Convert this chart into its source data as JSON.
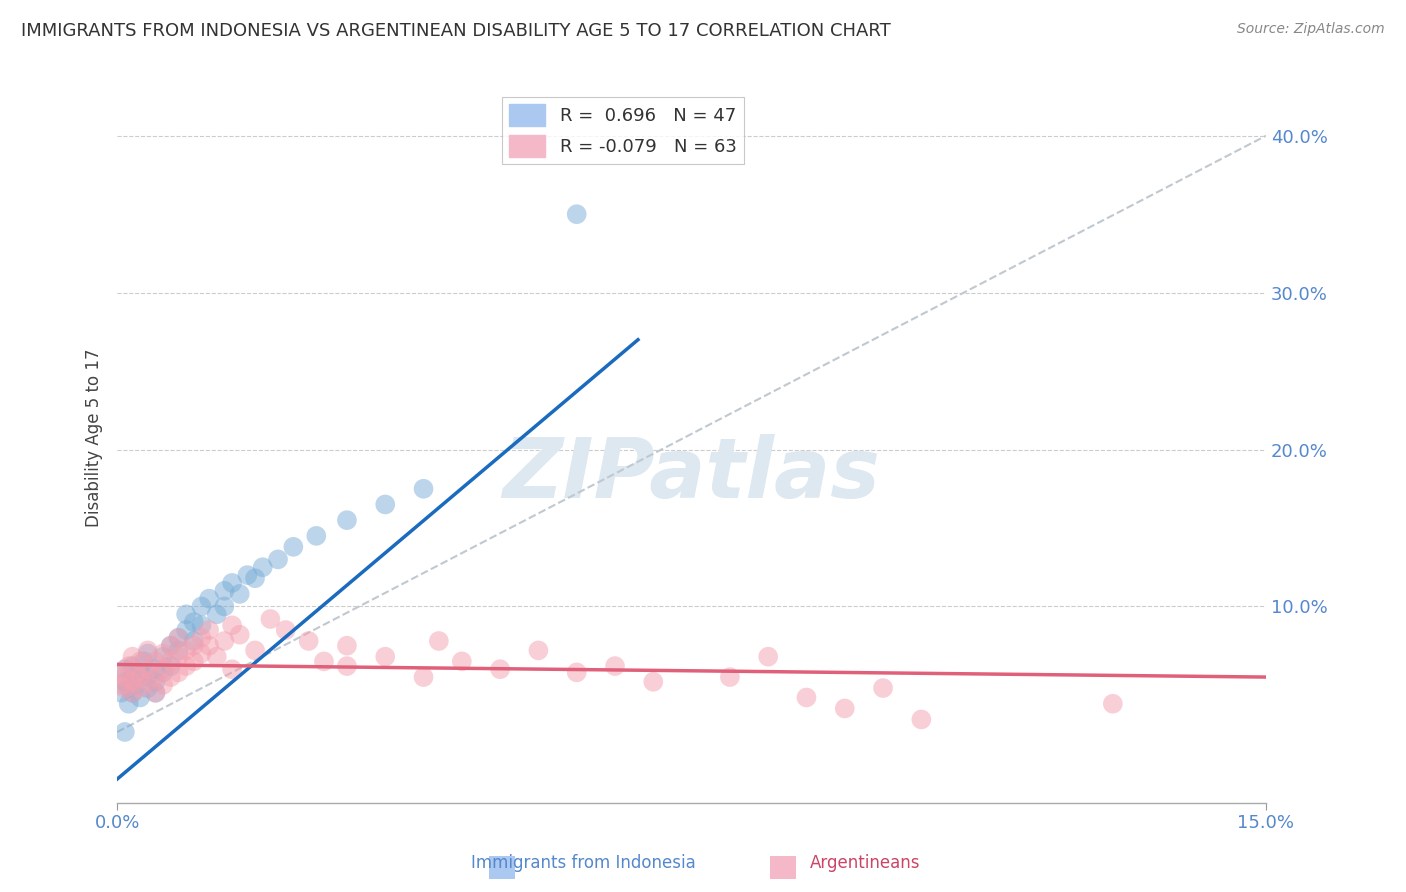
{
  "title": "IMMIGRANTS FROM INDONESIA VS ARGENTINEAN DISABILITY AGE 5 TO 17 CORRELATION CHART",
  "source": "Source: ZipAtlas.com",
  "ylabel": "Disability Age 5 to 17",
  "ytick_values": [
    0.1,
    0.2,
    0.3,
    0.4
  ],
  "ytick_labels": [
    "10.0%",
    "20.0%",
    "30.0%",
    "40.0%"
  ],
  "xlim": [
    0.0,
    0.15
  ],
  "ylim": [
    -0.025,
    0.44
  ],
  "indonesia_color": "#7aacd6",
  "argentina_color": "#f4a0b0",
  "indonesia_line_color": "#1a6bbf",
  "argentina_line_color": "#e0607a",
  "dash_line_color": "#c0c8d0",
  "watermark_color": "#dde8f0",
  "indonesia_R": 0.696,
  "indonesia_N": 47,
  "argentina_R": -0.079,
  "argentina_N": 63,
  "indo_line_x0": 0.0,
  "indo_line_y0": -0.01,
  "indo_line_x1": 0.068,
  "indo_line_y1": 0.27,
  "arg_line_x0": 0.0,
  "arg_line_y0": 0.063,
  "arg_line_x1": 0.15,
  "arg_line_y1": 0.055,
  "dash_line_x0": 0.0,
  "dash_line_y0": 0.02,
  "dash_line_x1": 0.15,
  "dash_line_y1": 0.4,
  "indonesia_points": [
    [
      0.0005,
      0.045
    ],
    [
      0.001,
      0.052
    ],
    [
      0.001,
      0.06
    ],
    [
      0.0015,
      0.048
    ],
    [
      0.0015,
      0.038
    ],
    [
      0.002,
      0.055
    ],
    [
      0.002,
      0.045
    ],
    [
      0.002,
      0.062
    ],
    [
      0.0025,
      0.05
    ],
    [
      0.003,
      0.058
    ],
    [
      0.003,
      0.042
    ],
    [
      0.0035,
      0.065
    ],
    [
      0.004,
      0.055
    ],
    [
      0.004,
      0.048
    ],
    [
      0.004,
      0.07
    ],
    [
      0.005,
      0.06
    ],
    [
      0.005,
      0.052
    ],
    [
      0.005,
      0.045
    ],
    [
      0.006,
      0.068
    ],
    [
      0.006,
      0.058
    ],
    [
      0.007,
      0.075
    ],
    [
      0.007,
      0.062
    ],
    [
      0.008,
      0.08
    ],
    [
      0.008,
      0.072
    ],
    [
      0.009,
      0.085
    ],
    [
      0.009,
      0.095
    ],
    [
      0.01,
      0.09
    ],
    [
      0.01,
      0.078
    ],
    [
      0.011,
      0.1
    ],
    [
      0.011,
      0.088
    ],
    [
      0.012,
      0.105
    ],
    [
      0.013,
      0.095
    ],
    [
      0.014,
      0.11
    ],
    [
      0.014,
      0.1
    ],
    [
      0.015,
      0.115
    ],
    [
      0.016,
      0.108
    ],
    [
      0.017,
      0.12
    ],
    [
      0.018,
      0.118
    ],
    [
      0.019,
      0.125
    ],
    [
      0.021,
      0.13
    ],
    [
      0.023,
      0.138
    ],
    [
      0.026,
      0.145
    ],
    [
      0.03,
      0.155
    ],
    [
      0.035,
      0.165
    ],
    [
      0.04,
      0.175
    ],
    [
      0.06,
      0.35
    ],
    [
      0.001,
      0.02
    ]
  ],
  "argentina_points": [
    [
      0.0003,
      0.058
    ],
    [
      0.0005,
      0.05
    ],
    [
      0.001,
      0.055
    ],
    [
      0.001,
      0.048
    ],
    [
      0.0015,
      0.062
    ],
    [
      0.002,
      0.052
    ],
    [
      0.002,
      0.045
    ],
    [
      0.002,
      0.068
    ],
    [
      0.0025,
      0.058
    ],
    [
      0.003,
      0.055
    ],
    [
      0.003,
      0.048
    ],
    [
      0.003,
      0.065
    ],
    [
      0.004,
      0.06
    ],
    [
      0.004,
      0.052
    ],
    [
      0.004,
      0.072
    ],
    [
      0.005,
      0.065
    ],
    [
      0.005,
      0.055
    ],
    [
      0.005,
      0.045
    ],
    [
      0.006,
      0.07
    ],
    [
      0.006,
      0.06
    ],
    [
      0.006,
      0.05
    ],
    [
      0.007,
      0.075
    ],
    [
      0.007,
      0.065
    ],
    [
      0.007,
      0.055
    ],
    [
      0.008,
      0.08
    ],
    [
      0.008,
      0.068
    ],
    [
      0.008,
      0.058
    ],
    [
      0.009,
      0.072
    ],
    [
      0.009,
      0.062
    ],
    [
      0.01,
      0.075
    ],
    [
      0.01,
      0.065
    ],
    [
      0.011,
      0.08
    ],
    [
      0.011,
      0.07
    ],
    [
      0.012,
      0.085
    ],
    [
      0.012,
      0.075
    ],
    [
      0.013,
      0.068
    ],
    [
      0.014,
      0.078
    ],
    [
      0.015,
      0.088
    ],
    [
      0.015,
      0.06
    ],
    [
      0.016,
      0.082
    ],
    [
      0.018,
      0.072
    ],
    [
      0.02,
      0.092
    ],
    [
      0.022,
      0.085
    ],
    [
      0.025,
      0.078
    ],
    [
      0.027,
      0.065
    ],
    [
      0.03,
      0.075
    ],
    [
      0.03,
      0.062
    ],
    [
      0.035,
      0.068
    ],
    [
      0.04,
      0.055
    ],
    [
      0.042,
      0.078
    ],
    [
      0.045,
      0.065
    ],
    [
      0.05,
      0.06
    ],
    [
      0.055,
      0.072
    ],
    [
      0.06,
      0.058
    ],
    [
      0.065,
      0.062
    ],
    [
      0.07,
      0.052
    ],
    [
      0.08,
      0.055
    ],
    [
      0.085,
      0.068
    ],
    [
      0.09,
      0.042
    ],
    [
      0.095,
      0.035
    ],
    [
      0.1,
      0.048
    ],
    [
      0.105,
      0.028
    ],
    [
      0.13,
      0.038
    ]
  ]
}
